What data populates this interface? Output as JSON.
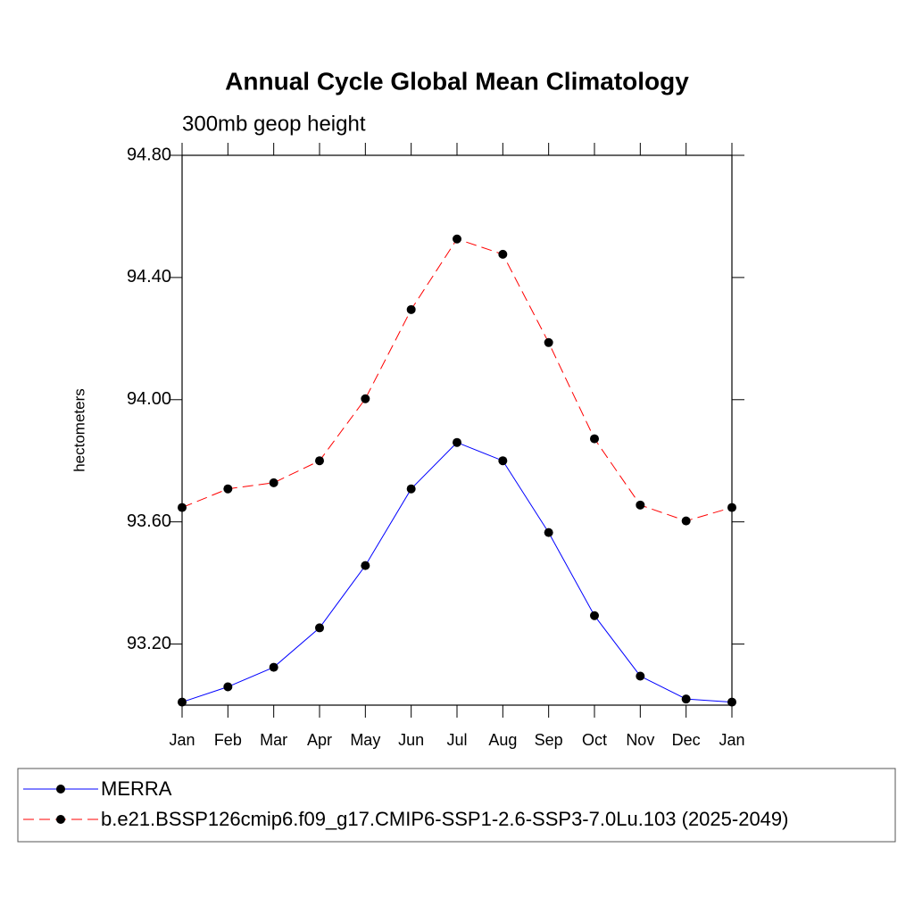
{
  "chart_data": {
    "type": "line",
    "title": "Annual Cycle Global Mean Climatology",
    "subtitle": "300mb geop height",
    "y_label": "hectometers",
    "categories": [
      "Jan",
      "Feb",
      "Mar",
      "Apr",
      "May",
      "Jun",
      "Jul",
      "Aug",
      "Sep",
      "Oct",
      "Nov",
      "Dec",
      "Jan"
    ],
    "series": [
      {
        "name": "MERRA",
        "color": "#0000ff",
        "dash": false,
        "values": [
          93.01,
          93.06,
          93.124,
          93.253,
          93.457,
          93.708,
          93.86,
          93.8,
          93.565,
          93.293,
          93.095,
          93.02,
          93.01
        ]
      },
      {
        "name": "b.e21.BSSP126cmip6.f09_g17.CMIP6-SSP1-2.6-SSP3-7.0Lu.103 (2025-2049)",
        "color": "#ff0000",
        "dash": true,
        "values": [
          93.647,
          93.708,
          93.728,
          93.8,
          94.003,
          94.295,
          94.526,
          94.476,
          94.187,
          93.872,
          93.655,
          93.603,
          93.647
        ]
      }
    ],
    "ylim": [
      93.0,
      94.8
    ],
    "yticks": [
      {
        "value": 93.2,
        "label": "93.20"
      },
      {
        "value": 93.6,
        "label": "93.60"
      },
      {
        "value": 94.0,
        "label": "94.00"
      },
      {
        "value": 94.4,
        "label": "94.40"
      },
      {
        "value": 94.8,
        "label": "94.80"
      }
    ],
    "grid": false
  }
}
